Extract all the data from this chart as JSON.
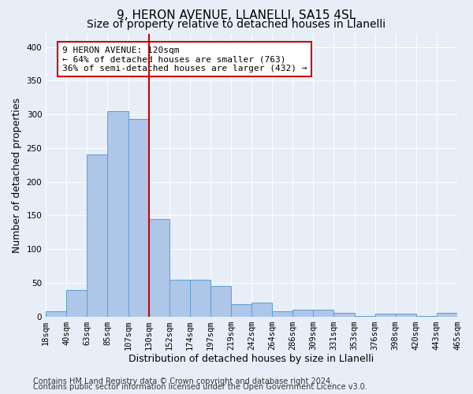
{
  "title1": "9, HERON AVENUE, LLANELLI, SA15 4SL",
  "title2": "Size of property relative to detached houses in Llanelli",
  "xlabel": "Distribution of detached houses by size in Llanelli",
  "ylabel": "Number of detached properties",
  "bar_values": [
    8,
    39,
    241,
    305,
    293,
    144,
    55,
    55,
    45,
    18,
    20,
    8,
    10,
    10,
    5,
    1,
    4,
    4,
    1,
    5
  ],
  "bin_labels": [
    "18sqm",
    "40sqm",
    "63sqm",
    "85sqm",
    "107sqm",
    "130sqm",
    "152sqm",
    "174sqm",
    "197sqm",
    "219sqm",
    "242sqm",
    "264sqm",
    "286sqm",
    "309sqm",
    "331sqm",
    "353sqm",
    "376sqm",
    "398sqm",
    "420sqm",
    "443sqm",
    "465sqm"
  ],
  "bar_color": "#aec6e8",
  "bar_edge_color": "#5a9fd4",
  "vline_color": "#cc0000",
  "annotation_line1": "9 HERON AVENUE: 120sqm",
  "annotation_line2": "← 64% of detached houses are smaller (763)",
  "annotation_line3": "36% of semi-detached houses are larger (432) →",
  "annotation_box_color": "#ffffff",
  "annotation_box_edge": "#cc0000",
  "ylim": [
    0,
    420
  ],
  "yticks": [
    0,
    50,
    100,
    150,
    200,
    250,
    300,
    350,
    400
  ],
  "background_color": "#e8eef7",
  "grid_color": "#ffffff",
  "footer1": "Contains HM Land Registry data © Crown copyright and database right 2024.",
  "footer2": "Contains public sector information licensed under the Open Government Licence v3.0.",
  "title1_fontsize": 11,
  "title2_fontsize": 10,
  "axis_fontsize": 9,
  "tick_fontsize": 7.5,
  "footer_fontsize": 7,
  "annot_fontsize": 8
}
